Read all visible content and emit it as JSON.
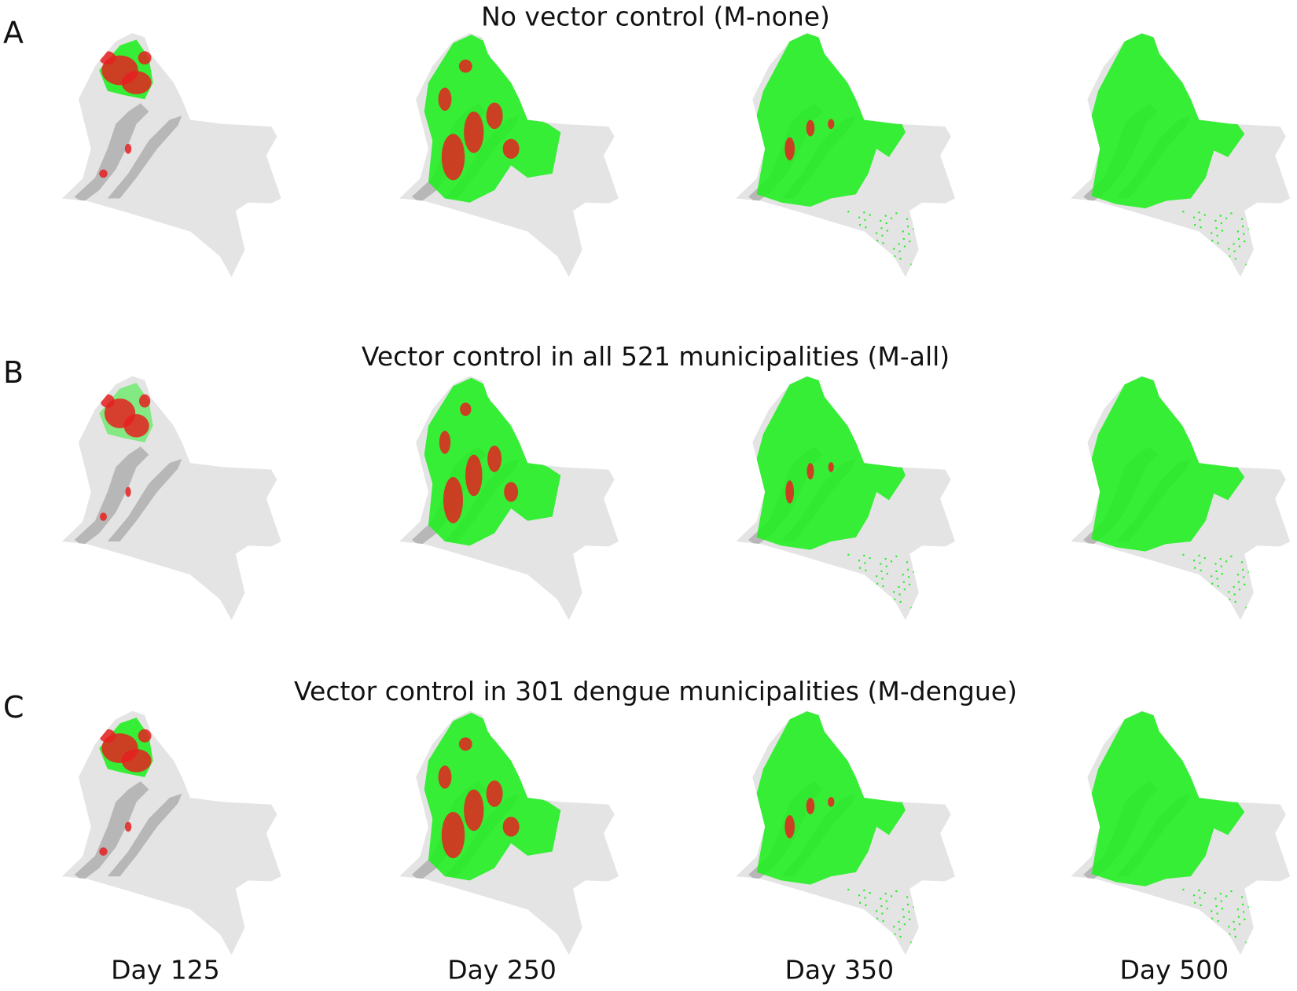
{
  "rows": [
    {
      "letter": "A",
      "title": "No vector control (M-none)"
    },
    {
      "letter": "B",
      "title": "Vector control in all 521 municipalities (M-all)"
    },
    {
      "letter": "C",
      "title": "Vector control in 301 dengue municipalities (M-dengue)"
    }
  ],
  "columns": [
    "Day 125",
    "Day 250",
    "Day 350",
    "Day 500"
  ]
}
